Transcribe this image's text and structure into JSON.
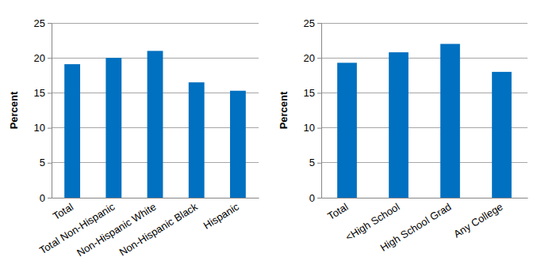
{
  "chart_data": [
    {
      "type": "bar",
      "ylabel": "Percent",
      "categories": [
        "Total",
        "Total Non-Hispanic",
        "Non-Hispanic White",
        "Non-Hispanic Black",
        "Hispanic"
      ],
      "values": [
        19.1,
        20.0,
        21.0,
        16.5,
        15.3
      ],
      "color": "#0070c0",
      "ylim": [
        0,
        25
      ],
      "yticks": [
        0,
        5,
        10,
        15,
        20,
        25
      ],
      "grid": true
    },
    {
      "type": "bar",
      "ylabel": "Percent",
      "categories": [
        "Total",
        "<High School",
        "High School Grad",
        "Any College"
      ],
      "values": [
        19.3,
        20.8,
        22.0,
        18.0
      ],
      "color": "#0070c0",
      "ylim": [
        0,
        25
      ],
      "yticks": [
        0,
        5,
        10,
        15,
        20,
        25
      ],
      "grid": true
    }
  ]
}
